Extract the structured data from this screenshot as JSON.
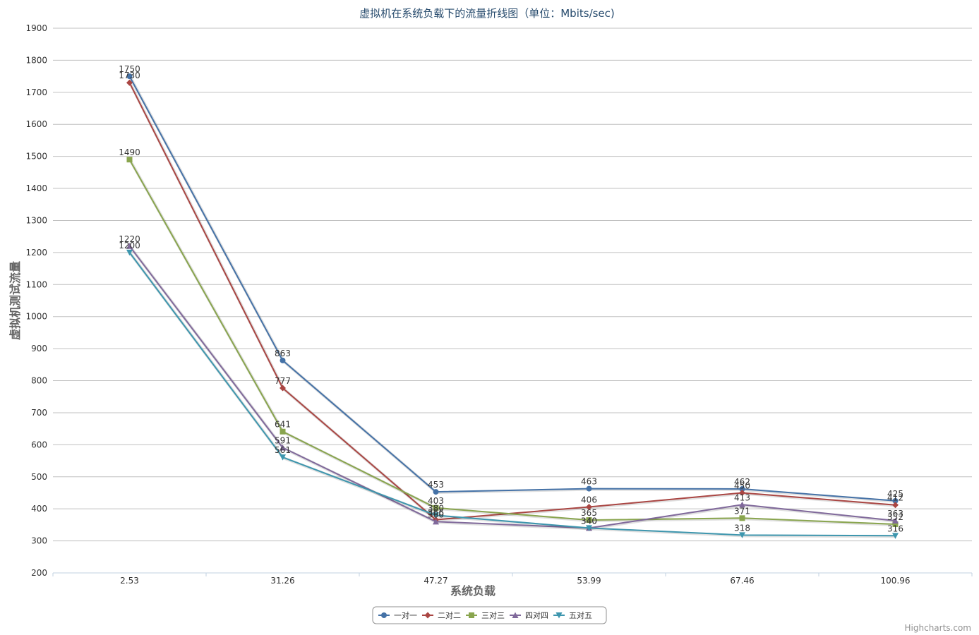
{
  "chart_data": {
    "type": "line",
    "title": "虚拟机在系统负载下的流量折线图（单位：Mbits/sec)",
    "xlabel": "系统负载",
    "ylabel": "虚拟机测试流量",
    "categories": [
      "2.53",
      "31.26",
      "47.27",
      "53.99",
      "67.46",
      "100.96"
    ],
    "ylim": [
      200,
      1900
    ],
    "ytick_step": 100,
    "grid": true,
    "legend_position": "bottom-center",
    "series": [
      {
        "name": "一对一",
        "color": "#4572a7",
        "marker": "circle",
        "values": [
          1750,
          863,
          453,
          463,
          462,
          425
        ]
      },
      {
        "name": "二对二",
        "color": "#aa4643",
        "marker": "diamond",
        "values": [
          1730,
          777,
          366,
          406,
          450,
          412
        ]
      },
      {
        "name": "三对三",
        "color": "#89a54e",
        "marker": "square",
        "values": [
          1490,
          641,
          403,
          365,
          371,
          352
        ]
      },
      {
        "name": "四对四",
        "color": "#80699b",
        "marker": "triangle",
        "values": [
          1220,
          591,
          360,
          340,
          413,
          363
        ]
      },
      {
        "name": "五对五",
        "color": "#3d96ae",
        "marker": "triangle-down",
        "values": [
          1200,
          561,
          380,
          340,
          318,
          316
        ]
      }
    ]
  },
  "credits": "Highcharts.com"
}
